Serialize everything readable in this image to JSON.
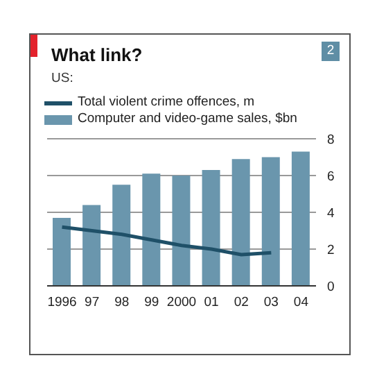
{
  "chart_data": {
    "type": "bar",
    "title": "What link?",
    "subtitle": "US:",
    "annotations": [
      "2"
    ],
    "categories": [
      "1996",
      "97",
      "98",
      "99",
      "2000",
      "01",
      "02",
      "03",
      "04"
    ],
    "series": [
      {
        "name": "Total violent crime offences, m",
        "type": "line",
        "color": "#1f5068",
        "values": [
          3.2,
          3.0,
          2.8,
          2.5,
          2.2,
          2.0,
          1.7,
          1.8,
          null
        ]
      },
      {
        "name": "Computer and video-game sales, $bn",
        "color": "#6a96ad",
        "values": [
          3.7,
          4.4,
          5.5,
          6.1,
          6.0,
          6.3,
          6.9,
          7.0,
          7.3
        ]
      }
    ],
    "ylim": [
      0,
      8
    ],
    "yticks": [
      0,
      2,
      4,
      6,
      8
    ],
    "grid": "y",
    "legend": "top left",
    "marker": "none"
  }
}
